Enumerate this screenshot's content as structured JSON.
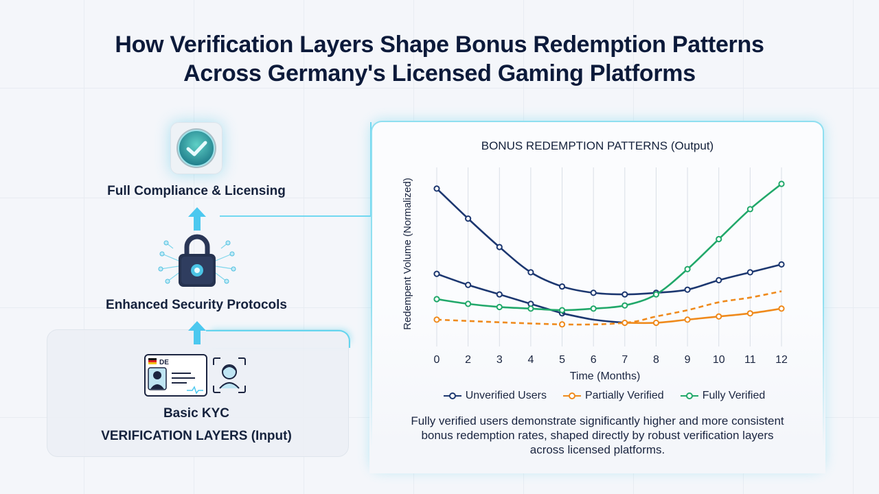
{
  "title": {
    "line1": "How Verification Layers Shape Bonus Redemption Patterns",
    "line2": "Across Germany's Licensed Gaming Platforms"
  },
  "layers": {
    "top_label": "Full Compliance & Licensing",
    "middle_label": "Enhanced Security Protocols",
    "bottom_label": "Basic KYC",
    "section_label": "VERIFICATION LAYERS (Input)",
    "id_card_country": "DE",
    "icons": [
      "check-badge-icon",
      "padlock-network-icon",
      "id-card-icon",
      "face-scan-icon"
    ]
  },
  "colors": {
    "unverified": "#1c3770",
    "partial": "#ef8a1c",
    "fully": "#21a86a",
    "accent": "#63d5ef",
    "arrow": "#4cc8ef"
  },
  "summary": "Fully verified users demonstrate significantly higher and more consistent bonus redemption rates, shaped directly by robust verification layers across licensed platforms.",
  "chart_data": {
    "type": "line",
    "title": "BONUS REDEMPTION PATTERNS (Output)",
    "xlabel": "Time (Months)",
    "ylabel": "Redempent Volume (Normalized)",
    "x": [
      0,
      2,
      3,
      4,
      5,
      6,
      7,
      8,
      9,
      10,
      11,
      12
    ],
    "grid": "vertical",
    "legend_position": "bottom",
    "series": [
      {
        "name": "Unverified Users",
        "color": "#1c3770",
        "style": "solid",
        "x": [
          0,
          2,
          3,
          4,
          5,
          6,
          7,
          8,
          9,
          10,
          11,
          12
        ],
        "y": [
          1.0,
          0.81,
          0.63,
          0.47,
          0.38,
          0.34,
          0.33,
          0.34,
          0.36,
          0.42,
          0.47,
          0.52
        ]
      },
      {
        "name": "Unverified Users",
        "color": "#1c3770",
        "style": "solid",
        "x": [
          0,
          2,
          3,
          4,
          5
        ],
        "y": [
          0.46,
          0.39,
          0.33,
          0.27,
          0.21
        ]
      },
      {
        "name": "",
        "color": "#1c3770",
        "style": "solid",
        "markers": false,
        "x": [
          5,
          6,
          7
        ],
        "y": [
          0.21,
          0.17,
          0.15
        ]
      },
      {
        "name": "Partially Verified",
        "color": "#ef8a1c",
        "style": "dashed",
        "x": [
          0,
          5,
          7,
          8,
          9,
          10,
          11,
          12
        ],
        "y": [
          0.17,
          0.14,
          0.15,
          0.19,
          0.23,
          0.28,
          0.31,
          0.35
        ]
      },
      {
        "name": "Partially Verified",
        "color": "#ef8a1c",
        "style": "solid",
        "x": [
          7,
          8,
          9,
          10,
          11,
          12
        ],
        "y": [
          0.15,
          0.15,
          0.17,
          0.19,
          0.21,
          0.24
        ]
      },
      {
        "name": "Fully Verified",
        "color": "#21a86a",
        "style": "solid",
        "x": [
          0,
          2,
          3,
          4,
          5,
          6,
          7,
          8,
          9,
          10,
          11,
          12
        ],
        "y": [
          0.3,
          0.27,
          0.25,
          0.24,
          0.23,
          0.24,
          0.26,
          0.33,
          0.49,
          0.68,
          0.87,
          1.03
        ]
      }
    ],
    "legend": [
      "Unverified Users",
      "Partially Verified",
      "Fully Verified"
    ]
  }
}
